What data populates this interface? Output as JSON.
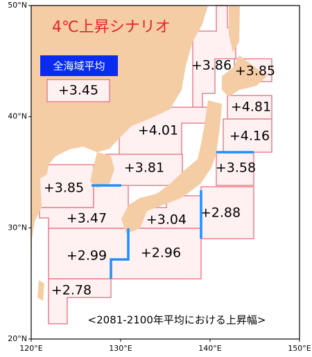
{
  "title": "4℃上昇シナリオ",
  "legend_label": "全海域平均",
  "average": "+3.45",
  "footer": "<2081-2100年平均における上昇幅>",
  "map": {
    "lonlim": [
      120,
      150
    ],
    "latlim": [
      20,
      50
    ],
    "lonticks": [
      {
        "value": 120,
        "label": "120°E"
      },
      {
        "value": 130,
        "label": "130°E"
      },
      {
        "value": 140,
        "label": "140°E"
      },
      {
        "value": 150,
        "label": "150°E"
      }
    ],
    "latticks": [
      {
        "value": 20,
        "label": "20°N"
      },
      {
        "value": 30,
        "label": "30°N"
      },
      {
        "value": 40,
        "label": "40°N"
      },
      {
        "value": 50,
        "label": "50°N"
      }
    ]
  },
  "regions": [
    {
      "label": "+3.86"
    },
    {
      "label": "+3.85"
    },
    {
      "label": "+4.81"
    },
    {
      "label": "+4.16"
    },
    {
      "label": "+3.58"
    },
    {
      "label": "+4.01"
    },
    {
      "label": "+3.81"
    },
    {
      "label": "+3.85"
    },
    {
      "label": "+3.47"
    },
    {
      "label": "+3.04"
    },
    {
      "label": "+2.88"
    },
    {
      "label": "+2.99"
    },
    {
      "label": "+2.96"
    },
    {
      "label": "+2.78"
    }
  ]
}
